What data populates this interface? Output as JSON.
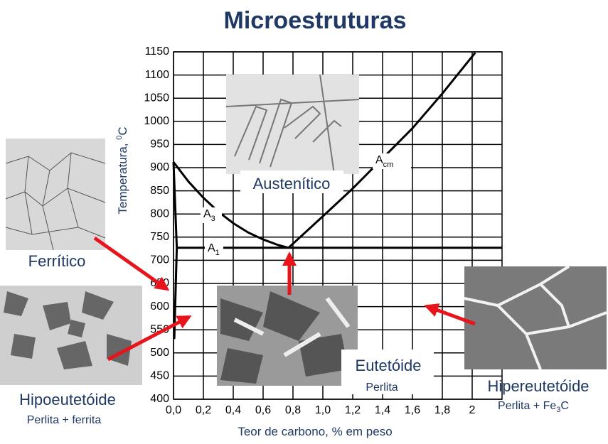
{
  "chart_data": {
    "type": "line",
    "title": "Microestruturas",
    "x_label": "Teor de carbono, % em peso",
    "y_label": [
      "Temperatura, ",
      "0",
      "C"
    ],
    "xlim": [
      0,
      2.2
    ],
    "ylim": [
      400,
      1150
    ],
    "xticks": [
      {
        "value": 0,
        "label": "0,0"
      },
      {
        "value": 0.2,
        "label": "0,2"
      },
      {
        "value": 0.4,
        "label": "0,4"
      },
      {
        "value": 0.6,
        "label": "0,6"
      },
      {
        "value": 0.8,
        "label": "0,8"
      },
      {
        "value": 1.0,
        "label": "1,0"
      },
      {
        "value": 1.2,
        "label": "1,2"
      },
      {
        "value": 1.4,
        "label": "1,4"
      },
      {
        "value": 1.6,
        "label": "1,6"
      },
      {
        "value": 1.8,
        "label": "1,8"
      },
      {
        "value": 2.0,
        "label": "2"
      }
    ],
    "yticks": [
      400,
      450,
      500,
      550,
      600,
      650,
      700,
      750,
      800,
      850,
      900,
      950,
      1000,
      1050,
      1100,
      1150
    ],
    "grid": true,
    "color": "#000000",
    "series": [
      {
        "x": [
          0,
          0.1,
          0.2,
          0.3,
          0.4,
          0.5,
          0.6,
          0.7,
          0.77
        ],
        "values": [
          912,
          870,
          835,
          805,
          780,
          760,
          745,
          733,
          727
        ]
      },
      {
        "x": [
          0.77,
          1.0,
          1.2,
          1.4,
          1.6,
          1.8,
          2.02
        ],
        "values": [
          727,
          795,
          855,
          920,
          985,
          1060,
          1148
        ]
      },
      {
        "x": [
          0.02,
          2.2
        ],
        "values": [
          727,
          727
        ]
      },
      {
        "x": [
          0,
          0.022,
          0.005
        ],
        "values": [
          912,
          727,
          530
        ]
      }
    ],
    "curve_labels": [
      [
        "A",
        "3"
      ],
      [
        "A",
        "cm"
      ],
      [
        "A",
        "1"
      ]
    ],
    "micrographs": [
      {
        "label": "Ferrítico"
      },
      {
        "label": "Austenítico"
      },
      {
        "label": "Eutetóide",
        "sub": [
          "Perlita"
        ]
      },
      {
        "label": "Hipoeutetóide",
        "sub": [
          "Perlita + ferrita"
        ]
      },
      {
        "label": "Hipereutetóide",
        "sub": [
          "Perlita + Fe",
          "3",
          "C"
        ]
      }
    ]
  }
}
